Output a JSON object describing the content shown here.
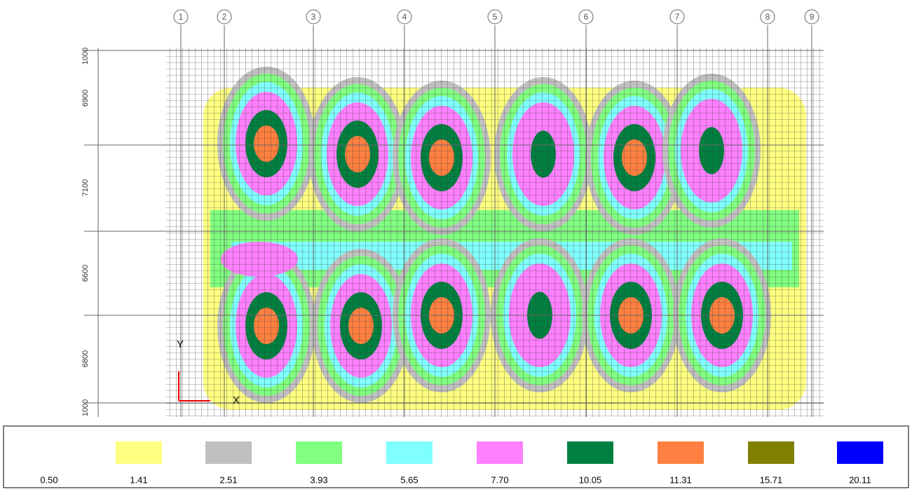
{
  "plan": {
    "grid_labels": [
      "1",
      "2",
      "3",
      "4",
      "5",
      "6",
      "7",
      "8",
      "9"
    ],
    "dimension_labels": [
      "1000",
      "6900",
      "7100",
      "6600",
      "6800",
      "1000"
    ],
    "axis_labels": [
      "Y",
      "X"
    ]
  },
  "legend": {
    "items": [
      {
        "label": "0.50",
        "color": "#ffffff"
      },
      {
        "label": "1.41",
        "color": "#ffff80"
      },
      {
        "label": "2.51",
        "color": "#c0c0c0"
      },
      {
        "label": "3.93",
        "color": "#80ff80"
      },
      {
        "label": "5.65",
        "color": "#80ffff"
      },
      {
        "label": "7.70",
        "color": "#ff80ff"
      },
      {
        "label": "10.05",
        "color": "#008040"
      },
      {
        "label": "11.31",
        "color": "#ff8040"
      },
      {
        "label": "15.71",
        "color": "#808000"
      },
      {
        "label": "20.11",
        "color": "#0000ff"
      }
    ]
  }
}
